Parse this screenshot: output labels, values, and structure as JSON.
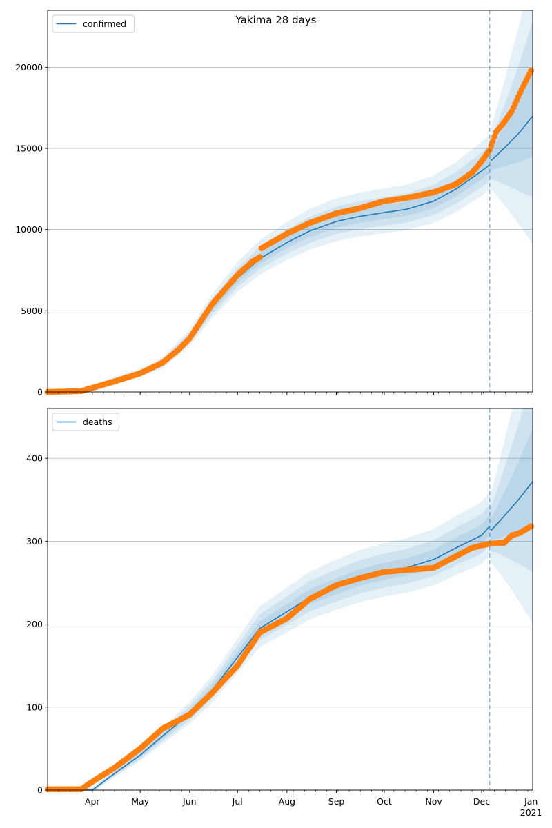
{
  "title": "Yakima 28 days",
  "colors": {
    "model": "#1f77b4",
    "observed": "#ff7f0e",
    "grid": "#b0b0b0",
    "band": "#1f77b4"
  },
  "date_axis": {
    "start": "2020-03-04",
    "end": "2021-01-02",
    "major_ticks": [
      {
        "date": "2020-04-01",
        "label": "Apr"
      },
      {
        "date": "2020-05-01",
        "label": "May"
      },
      {
        "date": "2020-06-01",
        "label": "Jun"
      },
      {
        "date": "2020-07-01",
        "label": "Jul"
      },
      {
        "date": "2020-08-01",
        "label": "Aug"
      },
      {
        "date": "2020-09-01",
        "label": "Sep"
      },
      {
        "date": "2020-10-01",
        "label": "Oct"
      },
      {
        "date": "2020-11-01",
        "label": "Nov"
      },
      {
        "date": "2020-12-01",
        "label": "Dec"
      },
      {
        "date": "2021-01-01",
        "label": "Jan",
        "sublabel": "2021"
      }
    ],
    "forecast_start": "2020-12-06"
  },
  "chart_data": [
    {
      "type": "line",
      "legend": "confirmed",
      "legend_position": "top-left",
      "grid": "horizontal",
      "ylim": [
        0,
        23500
      ],
      "yticks": [
        0,
        5000,
        10000,
        15000,
        20000
      ],
      "model": [
        [
          "2020-03-04",
          0
        ],
        [
          "2020-03-25",
          80
        ],
        [
          "2020-04-01",
          250
        ],
        [
          "2020-04-15",
          700
        ],
        [
          "2020-05-01",
          1150
        ],
        [
          "2020-05-15",
          1750
        ],
        [
          "2020-06-01",
          3300
        ],
        [
          "2020-06-15",
          5200
        ],
        [
          "2020-07-01",
          7000
        ],
        [
          "2020-07-15",
          8200
        ],
        [
          "2020-08-01",
          9200
        ],
        [
          "2020-08-15",
          9900
        ],
        [
          "2020-09-01",
          10500
        ],
        [
          "2020-09-15",
          10800
        ],
        [
          "2020-10-01",
          11050
        ],
        [
          "2020-10-15",
          11250
        ],
        [
          "2020-11-01",
          11750
        ],
        [
          "2020-11-15",
          12500
        ],
        [
          "2020-12-01",
          13600
        ],
        [
          "2020-12-06",
          14000
        ]
      ],
      "forecast": [
        [
          "2020-12-07",
          14250
        ],
        [
          "2020-12-15",
          15000
        ],
        [
          "2020-12-25",
          16000
        ],
        [
          "2021-01-02",
          17000
        ]
      ],
      "observed": [
        [
          "2020-03-04",
          0
        ],
        [
          "2020-03-25",
          50
        ],
        [
          "2020-04-01",
          250
        ],
        [
          "2020-04-15",
          650
        ],
        [
          "2020-05-01",
          1150
        ],
        [
          "2020-05-15",
          1800
        ],
        [
          "2020-05-25",
          2600
        ],
        [
          "2020-06-01",
          3300
        ],
        [
          "2020-06-15",
          5400
        ],
        [
          "2020-07-01",
          7200
        ],
        [
          "2020-07-10",
          8000
        ],
        [
          "2020-07-15",
          8300
        ],
        [
          "2020-07-16",
          8850
        ],
        [
          "2020-08-01",
          9750
        ],
        [
          "2020-08-15",
          10400
        ],
        [
          "2020-09-01",
          11000
        ],
        [
          "2020-09-15",
          11300
        ],
        [
          "2020-10-01",
          11750
        ],
        [
          "2020-10-15",
          11950
        ],
        [
          "2020-11-01",
          12300
        ],
        [
          "2020-11-15",
          12800
        ],
        [
          "2020-11-25",
          13500
        ],
        [
          "2020-12-01",
          14200
        ],
        [
          "2020-12-06",
          14900
        ],
        [
          "2020-12-10",
          16000
        ],
        [
          "2020-12-15",
          16600
        ],
        [
          "2020-12-20",
          17300
        ],
        [
          "2020-12-25",
          18400
        ],
        [
          "2020-12-29",
          19200
        ],
        [
          "2021-01-01",
          19800
        ]
      ]
    },
    {
      "type": "line",
      "legend": "deaths",
      "legend_position": "top-left",
      "grid": "horizontal",
      "ylim": [
        0,
        460
      ],
      "yticks": [
        0,
        100,
        200,
        300,
        400
      ],
      "model": [
        [
          "2020-03-04",
          0
        ],
        [
          "2020-04-01",
          0
        ],
        [
          "2020-04-15",
          20
        ],
        [
          "2020-05-01",
          42
        ],
        [
          "2020-05-15",
          65
        ],
        [
          "2020-06-01",
          92
        ],
        [
          "2020-06-15",
          120
        ],
        [
          "2020-07-01",
          160
        ],
        [
          "2020-07-15",
          195
        ],
        [
          "2020-08-01",
          215
        ],
        [
          "2020-08-15",
          232
        ],
        [
          "2020-09-01",
          245
        ],
        [
          "2020-09-15",
          255
        ],
        [
          "2020-10-01",
          263
        ],
        [
          "2020-10-15",
          268
        ],
        [
          "2020-11-01",
          278
        ],
        [
          "2020-11-15",
          292
        ],
        [
          "2020-12-01",
          307
        ],
        [
          "2020-12-06",
          318
        ]
      ],
      "forecast": [
        [
          "2020-12-07",
          313
        ],
        [
          "2020-12-15",
          330
        ],
        [
          "2020-12-25",
          352
        ],
        [
          "2021-01-02",
          372
        ]
      ],
      "observed": [
        [
          "2020-03-04",
          1
        ],
        [
          "2020-03-25",
          1
        ],
        [
          "2020-04-01",
          10
        ],
        [
          "2020-04-15",
          27
        ],
        [
          "2020-05-01",
          50
        ],
        [
          "2020-05-15",
          74
        ],
        [
          "2020-06-01",
          91
        ],
        [
          "2020-06-15",
          117
        ],
        [
          "2020-07-01",
          150
        ],
        [
          "2020-07-15",
          190
        ],
        [
          "2020-08-01",
          207
        ],
        [
          "2020-08-15",
          230
        ],
        [
          "2020-09-01",
          247
        ],
        [
          "2020-09-15",
          255
        ],
        [
          "2020-10-01",
          263
        ],
        [
          "2020-11-01",
          268
        ],
        [
          "2020-11-15",
          282
        ],
        [
          "2020-11-25",
          292
        ],
        [
          "2020-12-01",
          295
        ],
        [
          "2020-12-06",
          297
        ],
        [
          "2020-12-15",
          298
        ],
        [
          "2020-12-20",
          307
        ],
        [
          "2020-12-25",
          310
        ],
        [
          "2021-01-01",
          318
        ]
      ]
    }
  ]
}
